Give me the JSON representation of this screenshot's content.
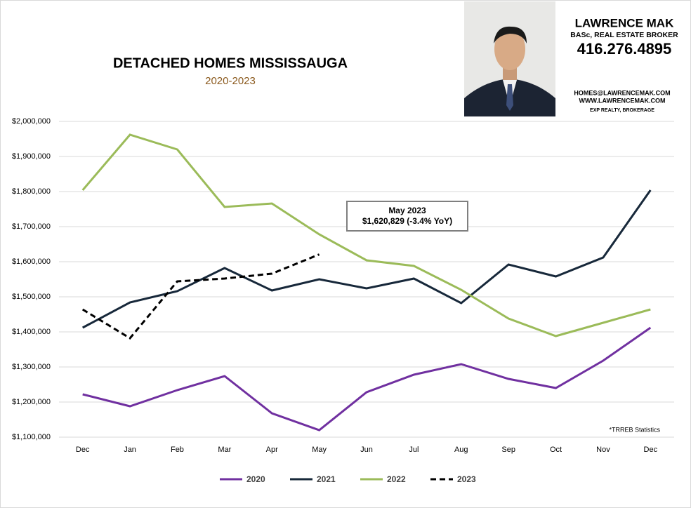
{
  "chart_data": {
    "type": "line",
    "title": "DETACHED HOMES MISSISSAUGA",
    "subtitle": "2020-2023",
    "annotation": {
      "title": "May 2023",
      "text": "$1,620,829  (-3.4%  YoY)"
    },
    "note": "*TRREB Statistics",
    "categories": [
      "Dec",
      "Jan",
      "Feb",
      "Mar",
      "Apr",
      "May",
      "Jun",
      "Jul",
      "Aug",
      "Sep",
      "Oct",
      "Nov",
      "Dec"
    ],
    "series": [
      {
        "name": "2020",
        "color": "#7030a0",
        "dash": false,
        "values": [
          1222000,
          1188000,
          1234000,
          1274000,
          1168000,
          1120000,
          1228000,
          1278000,
          1308000,
          1266000,
          1240000,
          1318000,
          1412000
        ]
      },
      {
        "name": "2021",
        "color": "#17283a",
        "dash": false,
        "values": [
          1412000,
          1484000,
          1516000,
          1582000,
          1518000,
          1550000,
          1524000,
          1552000,
          1482000,
          1592000,
          1558000,
          1612000,
          1804000
        ]
      },
      {
        "name": "2022",
        "color": "#9bbb59",
        "dash": false,
        "values": [
          1804000,
          1962000,
          1920000,
          1756000,
          1766000,
          1678000,
          1604000,
          1588000,
          1520000,
          1438000,
          1388000,
          1426000,
          1464000
        ]
      },
      {
        "name": "2023",
        "color": "#000000",
        "dash": true,
        "values": [
          1464000,
          1382000,
          1544000,
          1552000,
          1566000,
          1620829,
          null,
          null,
          null,
          null,
          null,
          null,
          null
        ]
      }
    ],
    "ylim": [
      1100000,
      2000000
    ],
    "yticks": [
      {
        "value": 1100000,
        "label": "$1,100,000"
      },
      {
        "value": 1200000,
        "label": "$1,200,000"
      },
      {
        "value": 1300000,
        "label": "$1,300,000"
      },
      {
        "value": 1400000,
        "label": "$1,400,000"
      },
      {
        "value": 1500000,
        "label": "$1,500,000"
      },
      {
        "value": 1600000,
        "label": "$1,600,000"
      },
      {
        "value": 1700000,
        "label": "$1,700,000"
      },
      {
        "value": 1800000,
        "label": "$1,800,000"
      },
      {
        "value": 1900000,
        "label": "$1,900,000"
      },
      {
        "value": 2000000,
        "label": "$2,000,000"
      }
    ],
    "grid": true,
    "legend": "bottom"
  },
  "agent": {
    "name": "LAWRENCE MAK",
    "role": "BASc, REAL ESTATE BROKER",
    "phone": "416.276.4895",
    "email": "HOMES@LAWRENCEMAK.COM",
    "website": "WWW.LAWRENCEMAK.COM",
    "brokerage": "EXP REALTY, BROKERAGE"
  }
}
